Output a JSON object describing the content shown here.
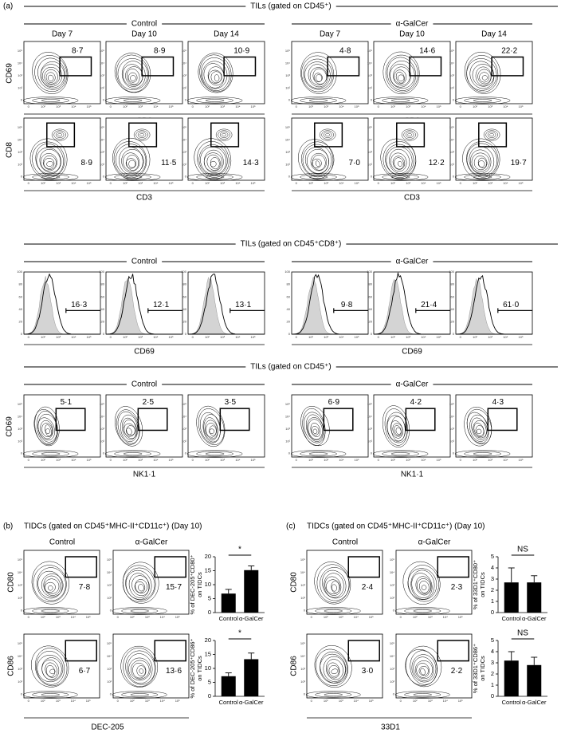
{
  "panel_a": {
    "label": "(a)",
    "contour_ticks": [
      "0",
      "10²",
      "10³",
      "10⁴",
      "10⁵"
    ],
    "histogram_ticks": [
      "0",
      "20",
      "40",
      "60",
      "80",
      "100"
    ],
    "sections": [
      {
        "kind": "contour",
        "header": "TILs (gated on CD45⁺)",
        "groups": [
          "Control",
          "α-GalCer"
        ],
        "days": [
          "Day 7",
          "Day 10",
          "Day 14"
        ],
        "rows": [
          {
            "y_label": "CD69",
            "x_label": "CD3",
            "gate": "high",
            "values": [
              "8·7",
              "8·9",
              "10·9",
              "4·8",
              "14·6",
              "22·2"
            ]
          },
          {
            "y_label": "CD8",
            "x_label": "CD3",
            "gate": "cd8",
            "values": [
              "8·9",
              "11·5",
              "14·3",
              "7·0",
              "12·2",
              "19·7"
            ]
          }
        ]
      },
      {
        "kind": "histogram",
        "header": "TILs (gated on CD45⁺CD8⁺)",
        "groups": [
          "Control",
          "α-GalCer"
        ],
        "rows": [
          {
            "x_label": "CD69",
            "values": [
              "16·3",
              "12·1",
              "13·1",
              "9·8",
              "21·4",
              "61·0"
            ]
          }
        ]
      },
      {
        "kind": "contour",
        "header": "TILs (gated on CD45⁺)",
        "groups": [
          "Control",
          "α-GalCer"
        ],
        "rows": [
          {
            "y_label": "CD69",
            "x_label": "NK1·1",
            "gate": "nk",
            "values": [
              "5·1",
              "2·5",
              "3·5",
              "6·9",
              "4·2",
              "4·3"
            ]
          }
        ]
      }
    ]
  },
  "panel_b": {
    "label": "(b)",
    "title": "TIDCs (gated on CD45⁺MHC-II⁺CD11c⁺) (Day 10)",
    "groups": [
      "Control",
      "α-GalCer"
    ],
    "x_label": "DEC-205",
    "rows": [
      {
        "y_label": "CD80",
        "values": [
          "7·8",
          "15·7"
        ]
      },
      {
        "y_label": "CD86",
        "values": [
          "6·7",
          "13·6"
        ]
      }
    ]
  },
  "panel_c": {
    "label": "(c)",
    "title": "TIDCs (gated on CD45⁺MHC-II⁺CD11c⁺) (Day 10)",
    "groups": [
      "Control",
      "α-GalCer"
    ],
    "x_label": "33D1",
    "rows": [
      {
        "y_label": "CD80",
        "values": [
          "2·4",
          "2·3"
        ]
      },
      {
        "y_label": "CD86",
        "values": [
          "3·0",
          "2·2"
        ]
      }
    ]
  },
  "chart_data": [
    {
      "type": "bar",
      "y_label": [
        "% of DEC-205⁺CD80⁺",
        "on TIDCs"
      ],
      "categories": [
        "Control",
        "α-GalCer"
      ],
      "values": [
        6.8,
        15.2
      ],
      "errors": [
        1.5,
        1.5
      ],
      "annotation": "*",
      "ylim": [
        0,
        20
      ],
      "yticks": [
        0,
        5,
        10,
        15,
        20
      ],
      "color": "#000000"
    },
    {
      "type": "bar",
      "y_label": [
        "% of DEC-205⁺CD86⁺",
        "on TIDCs"
      ],
      "categories": [
        "Control",
        "α-GalCer"
      ],
      "values": [
        7.2,
        13.3
      ],
      "errors": [
        1.2,
        2.2
      ],
      "annotation": "*",
      "ylim": [
        0,
        20
      ],
      "yticks": [
        0,
        5,
        10,
        15,
        20
      ],
      "color": "#000000"
    },
    {
      "type": "bar",
      "y_label": [
        "% of 33D1⁺CD80⁺",
        "on TIDCs"
      ],
      "categories": [
        "Control",
        "α-GalCer"
      ],
      "values": [
        2.7,
        2.7
      ],
      "errors": [
        1.3,
        0.6
      ],
      "annotation": "NS",
      "ylim": [
        0,
        5
      ],
      "yticks": [
        0,
        1,
        2,
        3,
        4,
        5
      ],
      "color": "#000000"
    },
    {
      "type": "bar",
      "y_label": [
        "% of 33D1⁺CD86⁺",
        "on TIDCs"
      ],
      "categories": [
        "Control",
        "α-GalCer"
      ],
      "values": [
        3.2,
        2.8
      ],
      "errors": [
        0.8,
        0.7
      ],
      "annotation": "NS",
      "ylim": [
        0,
        5
      ],
      "yticks": [
        0,
        1,
        2,
        3,
        4,
        5
      ],
      "color": "#000000"
    }
  ]
}
